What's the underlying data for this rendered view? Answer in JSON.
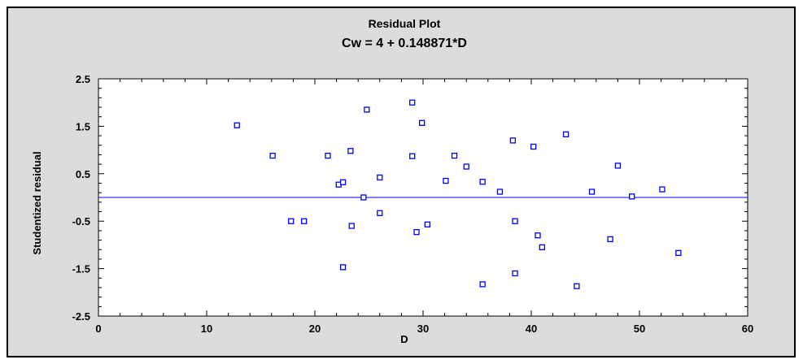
{
  "chart_data": {
    "type": "scatter",
    "title": "Residual Plot",
    "subtitle": "Cw = 4 + 0.148871*D",
    "xlabel": "D",
    "ylabel": "Studentized residual",
    "xlim": [
      0,
      60
    ],
    "ylim": [
      -2.5,
      2.5
    ],
    "xticks": [
      "0",
      "10",
      "20",
      "30",
      "40",
      "50",
      "60"
    ],
    "yticks": [
      "2.5",
      "1.5",
      "0.5",
      "-0.5",
      "-1.5",
      "-2.5"
    ],
    "reference_line_y": 0,
    "colors": {
      "marker": "#0000ff",
      "line": "#0000ff",
      "background": "#dcdcdc",
      "plot_area": "#ffffff"
    },
    "points": [
      {
        "x": 12.8,
        "y": 1.52
      },
      {
        "x": 16.1,
        "y": 0.88
      },
      {
        "x": 17.8,
        "y": -0.5
      },
      {
        "x": 19.0,
        "y": -0.5
      },
      {
        "x": 21.2,
        "y": 0.88
      },
      {
        "x": 22.2,
        "y": 0.27
      },
      {
        "x": 22.6,
        "y": 0.32
      },
      {
        "x": 22.6,
        "y": -1.47
      },
      {
        "x": 23.3,
        "y": 0.98
      },
      {
        "x": 23.4,
        "y": -0.6
      },
      {
        "x": 24.5,
        "y": 0.0
      },
      {
        "x": 24.8,
        "y": 1.85
      },
      {
        "x": 26.0,
        "y": 0.42
      },
      {
        "x": 26.0,
        "y": -0.33
      },
      {
        "x": 29.0,
        "y": 2.0
      },
      {
        "x": 29.0,
        "y": 0.87
      },
      {
        "x": 29.4,
        "y": -0.73
      },
      {
        "x": 29.9,
        "y": 1.57
      },
      {
        "x": 30.4,
        "y": -0.57
      },
      {
        "x": 32.1,
        "y": 0.35
      },
      {
        "x": 32.9,
        "y": 0.88
      },
      {
        "x": 34.0,
        "y": 0.65
      },
      {
        "x": 35.5,
        "y": 0.33
      },
      {
        "x": 35.5,
        "y": -1.83
      },
      {
        "x": 37.1,
        "y": 0.12
      },
      {
        "x": 38.3,
        "y": 1.2
      },
      {
        "x": 38.5,
        "y": -0.5
      },
      {
        "x": 38.5,
        "y": -1.6
      },
      {
        "x": 40.2,
        "y": 1.07
      },
      {
        "x": 40.6,
        "y": -0.8
      },
      {
        "x": 41.0,
        "y": -1.05
      },
      {
        "x": 43.2,
        "y": 1.33
      },
      {
        "x": 44.2,
        "y": -1.87
      },
      {
        "x": 45.6,
        "y": 0.12
      },
      {
        "x": 47.3,
        "y": -0.88
      },
      {
        "x": 48.0,
        "y": 0.67
      },
      {
        "x": 49.3,
        "y": 0.02
      },
      {
        "x": 52.1,
        "y": 0.17
      },
      {
        "x": 53.6,
        "y": -1.17
      }
    ]
  }
}
